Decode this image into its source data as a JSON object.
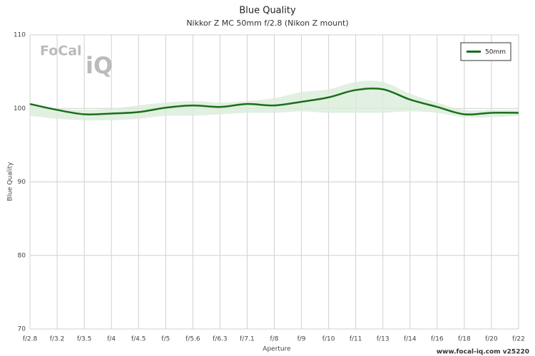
{
  "chart_data": {
    "type": "line",
    "title": "Blue Quality",
    "subtitle": "Nikkor Z MC 50mm f/2.8 (Nikon Z mount)",
    "x_label": "Aperture",
    "y_label": "Blue Quality",
    "logo": [
      "FoCal",
      "iQ"
    ],
    "footer": "www.focal-iq.com  v25220",
    "categories": [
      "f/2.8",
      "f/3.2",
      "f/3.5",
      "f/4",
      "f/4.5",
      "f/5",
      "f/5.6",
      "f/6.3",
      "f/7.1",
      "f/8",
      "f/9",
      "f/10",
      "f/11",
      "f/13",
      "f/14",
      "f/16",
      "f/18",
      "f/20",
      "f/22"
    ],
    "series": [
      {
        "name": "50mm",
        "color": "#1a6e1a",
        "values": [
          100.6,
          99.8,
          99.2,
          99.3,
          99.5,
          100.1,
          100.4,
          100.2,
          100.6,
          100.4,
          100.9,
          101.5,
          102.5,
          102.6,
          101.2,
          100.2,
          99.2,
          99.4,
          99.4
        ],
        "band_color": "#d9ecd9",
        "upper": [
          100.6,
          100.0,
          99.8,
          100.0,
          100.4,
          100.8,
          101.0,
          100.8,
          101.0,
          101.4,
          102.2,
          102.6,
          103.6,
          103.6,
          102.0,
          100.8,
          99.8,
          99.8,
          99.8
        ],
        "lower": [
          99.0,
          98.6,
          98.4,
          98.4,
          98.6,
          99.0,
          99.0,
          99.2,
          99.4,
          99.4,
          99.6,
          99.4,
          99.4,
          99.4,
          99.6,
          99.4,
          98.8,
          98.8,
          99.0
        ]
      }
    ],
    "ylim": [
      70,
      110
    ],
    "yticks": [
      70,
      80,
      90,
      100,
      110
    ],
    "grid": true,
    "legend": "top-right"
  }
}
